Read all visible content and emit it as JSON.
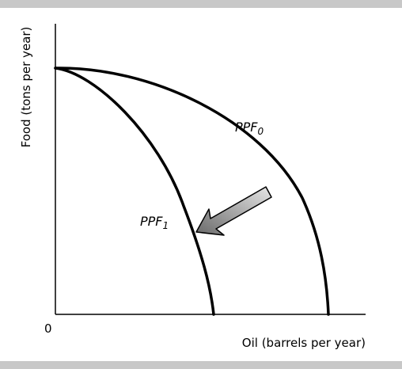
{
  "chart_data": {
    "type": "line",
    "title": "",
    "xlabel": "Oil (barrels per year)",
    "ylabel": "Food (tons per year)",
    "origin_label": "0",
    "grid": false,
    "series": [
      {
        "name": "PPF",
        "subscript": "0"
      },
      {
        "name": "PPF",
        "subscript": "1"
      }
    ],
    "annotation": "arrow pointing from PPF0 toward PPF1 (shift inward)"
  },
  "colors": {
    "band": "#c8c8c8",
    "curve": "#000000",
    "arrow_dark": "#6a6a6a",
    "arrow_light": "#e6e6e6"
  }
}
